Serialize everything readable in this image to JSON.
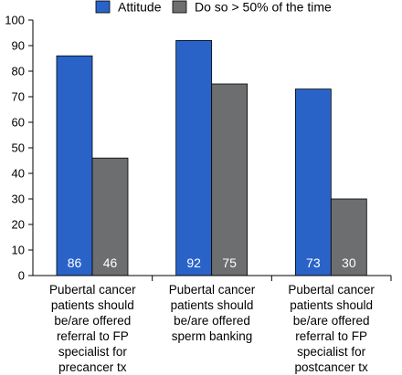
{
  "chart_data": {
    "type": "bar",
    "title": "",
    "xlabel": "",
    "ylabel": "",
    "ylim": [
      0,
      100
    ],
    "yticks": [
      0,
      10,
      20,
      30,
      40,
      50,
      60,
      70,
      80,
      90,
      100
    ],
    "legend_position": "top",
    "grid": false,
    "categories": [
      [
        "Pubertal cancer",
        "patients should",
        "be/are offered",
        "referral to FP",
        "specialist for",
        "precancer tx"
      ],
      [
        "Pubertal cancer",
        "patients should",
        "be/are offered",
        "sperm banking"
      ],
      [
        "Pubertal cancer",
        "patients should",
        "be/are offered",
        "referral to  FP",
        "specialist for",
        "postcancer tx"
      ]
    ],
    "series": [
      {
        "name": "Attitude",
        "color": "#2a63c8",
        "values": [
          86,
          92,
          73
        ],
        "data_labels": [
          "86",
          "92",
          "73"
        ]
      },
      {
        "name": "Do so > 50% of the time",
        "color": "#6d6e70",
        "values": [
          46,
          75,
          30
        ],
        "data_labels": [
          "46",
          "75",
          "30"
        ]
      }
    ]
  }
}
